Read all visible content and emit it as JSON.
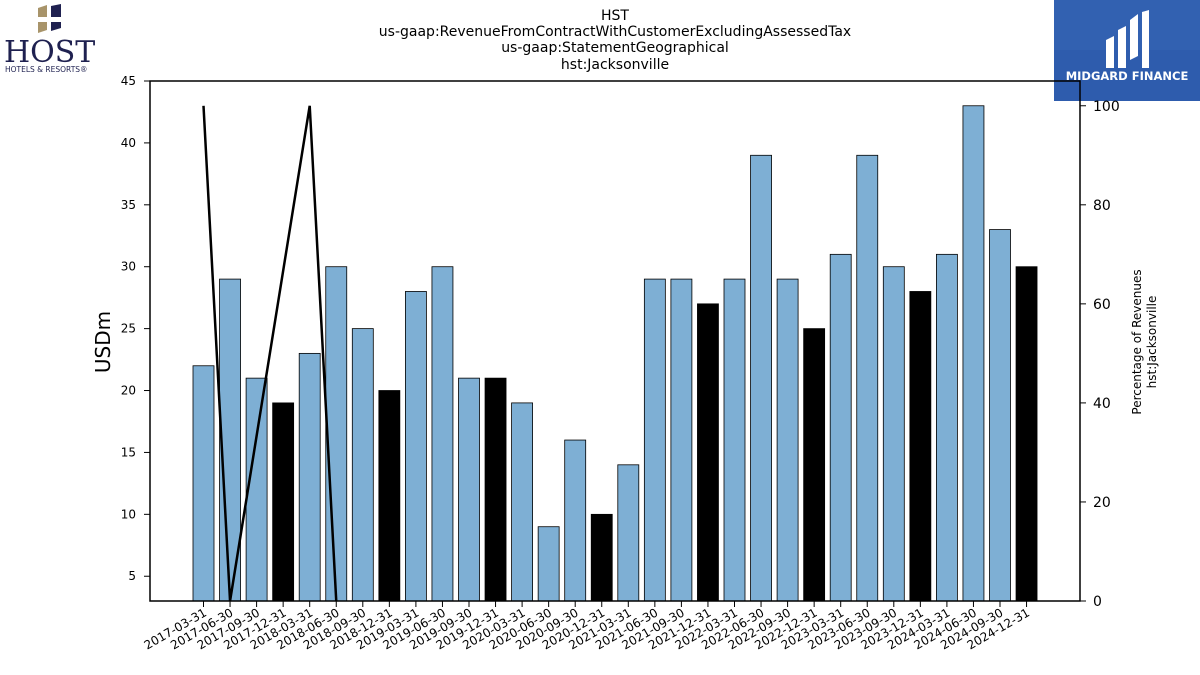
{
  "brand_left": {
    "name": "HOST",
    "tagline": "HOTELS & RESORTS®"
  },
  "brand_right": {
    "name": "MIDGARD FINANCE"
  },
  "chart_data": {
    "type": "bar",
    "title_lines": [
      "HST",
      "us-gaap:RevenueFromContractWithCustomerExcludingAssessedTax",
      "us-gaap:StatementGeographical",
      "hst:Jacksonville"
    ],
    "ylabel": "USDm",
    "y2label_lines": [
      "Percentage of Revenues",
      "hst:Jacksonville"
    ],
    "ylim": [
      3,
      45
    ],
    "y_ticks": [
      5,
      10,
      15,
      20,
      25,
      30,
      35,
      40,
      45
    ],
    "y2lim": [
      0,
      105
    ],
    "y2_ticks": [
      0,
      20,
      40,
      60,
      80,
      100
    ],
    "categories": [
      "2017-03-31",
      "2017-06-30",
      "2017-09-30",
      "2017-12-31",
      "2018-03-31",
      "2018-06-30",
      "2018-09-30",
      "2018-12-31",
      "2019-03-31",
      "2019-06-30",
      "2019-09-30",
      "2019-12-31",
      "2020-03-31",
      "2020-06-30",
      "2020-09-30",
      "2020-12-31",
      "2021-03-31",
      "2021-06-30",
      "2021-09-30",
      "2021-12-31",
      "2022-03-31",
      "2022-06-30",
      "2022-09-30",
      "2022-12-31",
      "2023-03-31",
      "2023-06-30",
      "2023-09-30",
      "2023-12-31",
      "2024-03-31",
      "2024-06-30",
      "2024-09-30",
      "2024-12-31"
    ],
    "values": [
      22,
      29,
      21,
      19,
      23,
      30,
      25,
      20,
      28,
      30,
      21,
      21,
      19,
      9,
      16,
      10,
      14,
      29,
      29,
      27,
      29,
      39,
      29,
      25,
      31,
      39,
      30,
      28,
      31,
      43,
      33,
      30
    ],
    "year_end_highlight": true,
    "bar_color": "#7eafd4",
    "highlight_color": "#000000",
    "line_series": {
      "points": [
        {
          "x": "2017-03-31",
          "y": 100
        },
        {
          "x": "2017-06-30",
          "y": 0
        },
        {
          "x": "2018-03-31",
          "y": 100
        },
        {
          "x": "2018-06-30",
          "y": 0
        }
      ],
      "color": "#000000"
    },
    "grid": false
  }
}
